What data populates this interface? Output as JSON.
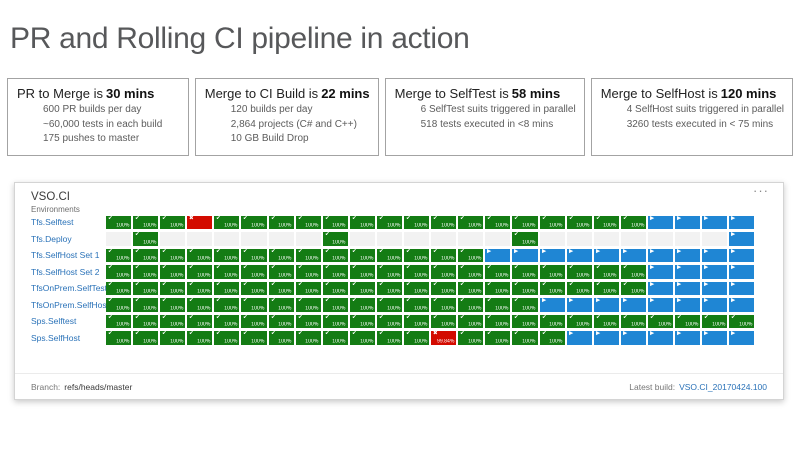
{
  "page_title": "PR and Rolling CI pipeline in action",
  "stats": [
    {
      "title": "PR to Merge is",
      "value": "30 mins",
      "lines": [
        "600 PR builds per day",
        "~60,000 tests in each build",
        "175 pushes to master"
      ]
    },
    {
      "title": "Merge to CI Build is",
      "value": "22 mins",
      "lines": [
        "120 builds per day",
        "2,864 projects (C# and C++)",
        "10 GB Build Drop"
      ]
    },
    {
      "title": "Merge to SelfTest is",
      "value": "58 mins",
      "lines": [
        "6 SelfTest suits triggered in parallel",
        "518 tests executed in <8 mins"
      ]
    },
    {
      "title": "Merge to SelfHost is",
      "value": "120 mins",
      "lines": [
        "4 SelfHost suits triggered in parallel",
        "3260 tests executed in < 75 mins"
      ]
    }
  ],
  "dashboard": {
    "title": "VSO.CI",
    "menu_icon": "···",
    "environments_label": "Environments",
    "columns": 24,
    "success_label": "100%",
    "fail_value": "99.84%",
    "cell_legend": {
      "g": "succeeded 100%",
      "b": "in progress",
      "x": "failed 99.84%",
      "r": "failed",
      "e": "not deployed"
    },
    "rows": [
      {
        "name": "Tfs.Selftest",
        "cells": "gggrggggggggggggggggbbbb"
      },
      {
        "name": "Tfs.Deploy",
        "cells": "egeeeeeegeeeeeegeeeeeeeb"
      },
      {
        "name": "Tfs.SelfHost Set 1",
        "cells": "ggggggggggggggbbbbbbbbbb"
      },
      {
        "name": "Tfs.SelfHost Set 2",
        "cells": "ggggggggggggggggggggbbbb"
      },
      {
        "name": "TfsOnPrem.SelfTest",
        "cells": "ggggggggggggggggggggbbbb"
      },
      {
        "name": "TfsOnPrem.SelfHost",
        "cells": "ggggggggggggggggbbbbbbbb"
      },
      {
        "name": "Sps.Selftest",
        "cells": "gggggggggggggggggggggggg"
      },
      {
        "name": "Sps.SelfHost",
        "cells": "ggggggggggggxggggbbbbbbb"
      }
    ],
    "footer": {
      "branch_label": "Branch:",
      "branch": "refs/heads/master",
      "latest_build_label": "Latest build:",
      "latest_build": "VSO.CI_20170424.100"
    }
  },
  "colors": {
    "green": "#147c14",
    "blue": "#1f86d4",
    "red": "#d30b00",
    "empty_cell": "#f2f2f2",
    "link": "#2a72b8",
    "heading": "#57585a"
  }
}
